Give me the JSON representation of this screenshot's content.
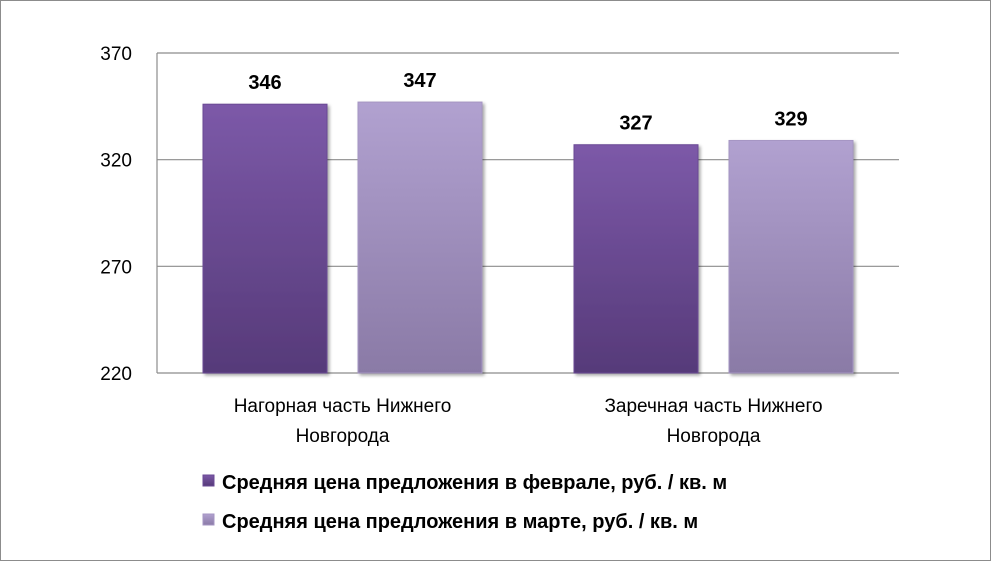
{
  "chart_data": {
    "type": "bar",
    "title": "",
    "xlabel": "",
    "ylabel": "",
    "categories": [
      [
        "Нагорная часть Нижнего",
        "Новгорода"
      ],
      [
        "Заречная часть Нижнего",
        "Новгорода"
      ]
    ],
    "series": [
      {
        "name": "Средняя цена предложения в феврале, руб. / кв. м",
        "values": [
          346,
          327
        ],
        "color": "#6a4a95"
      },
      {
        "name": "Средняя цена предложения в марте, руб. / кв. м",
        "values": [
          347,
          329
        ],
        "color": "#a596c3"
      }
    ],
    "ylim": [
      220,
      370
    ],
    "yticks": [
      220,
      270,
      320,
      370
    ],
    "grid": true,
    "legend_position": "bottom"
  }
}
